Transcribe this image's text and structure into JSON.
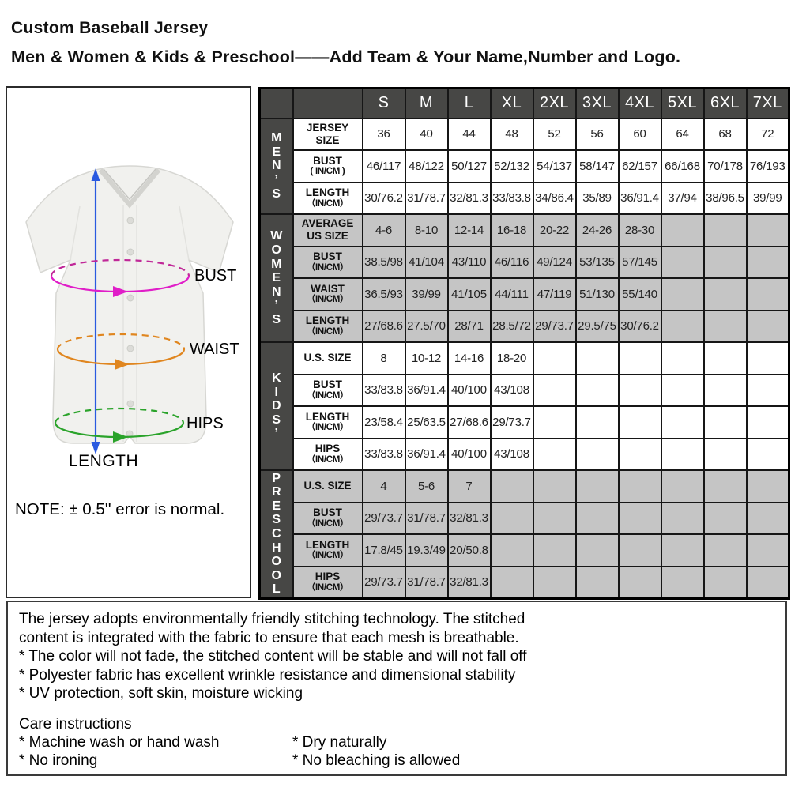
{
  "header": {
    "title": "Custom Baseball Jersey",
    "subtitle": "Men & Women & Kids & Preschool——Add Team & Your Name,Number and Logo."
  },
  "diagram": {
    "labels": {
      "bust": "BUST",
      "waist": "WAIST",
      "hips": "HIPS",
      "length": "LENGTH"
    },
    "note": "NOTE: ± 0.5'' error is normal.",
    "colors": {
      "bust": "#e01ec8",
      "bust_dash": "#c02898",
      "waist": "#e0861f",
      "hips": "#2aa32a",
      "length_arrow": "#2a5ae0"
    }
  },
  "size_table": {
    "columns": [
      "S",
      "M",
      "L",
      "XL",
      "2XL",
      "3XL",
      "4XL",
      "5XL",
      "6XL",
      "7XL"
    ],
    "sections": [
      {
        "key": "mens",
        "name": "MEN'S",
        "letters": [
          "M",
          "E",
          "N",
          "’",
          "S"
        ],
        "shaded": false,
        "rows": [
          {
            "label": "JERSEY SIZE",
            "unit": "",
            "values": [
              "36",
              "40",
              "44",
              "48",
              "52",
              "56",
              "60",
              "64",
              "68",
              "72"
            ]
          },
          {
            "label": "BUST",
            "unit": "( IN/CM )",
            "values": [
              "46/117",
              "48/122",
              "50/127",
              "52/132",
              "54/137",
              "58/147",
              "62/157",
              "66/168",
              "70/178",
              "76/193"
            ]
          },
          {
            "label": "LENGTH",
            "unit": "（IN/CM）",
            "values": [
              "30/76.2",
              "31/78.7",
              "32/81.3",
              "33/83.8",
              "34/86.4",
              "35/89",
              "36/91.4",
              "37/94",
              "38/96.5",
              "39/99"
            ]
          }
        ]
      },
      {
        "key": "womens",
        "name": "WOMEN'S",
        "letters": [
          "W",
          "O",
          "M",
          "E",
          "N",
          "’",
          "S"
        ],
        "shaded": true,
        "rows": [
          {
            "label": "AVERAGE US SIZE",
            "unit": "",
            "values": [
              "4-6",
              "8-10",
              "12-14",
              "16-18",
              "20-22",
              "24-26",
              "28-30",
              "",
              "",
              ""
            ]
          },
          {
            "label": "BUST",
            "unit": "（IN/CM）",
            "values": [
              "38.5/98",
              "41/104",
              "43/110",
              "46/116",
              "49/124",
              "53/135",
              "57/145",
              "",
              "",
              ""
            ]
          },
          {
            "label": "WAIST",
            "unit": "（IN/CM）",
            "values": [
              "36.5/93",
              "39/99",
              "41/105",
              "44/111",
              "47/119",
              "51/130",
              "55/140",
              "",
              "",
              ""
            ]
          },
          {
            "label": "LENGTH",
            "unit": "（IN/CM）",
            "values": [
              "27/68.6",
              "27.5/70",
              "28/71",
              "28.5/72",
              "29/73.7",
              "29.5/75",
              "30/76.2",
              "",
              "",
              ""
            ]
          }
        ]
      },
      {
        "key": "kids",
        "name": "KIDS'",
        "letters": [
          "K",
          "I",
          "D",
          "S",
          "’"
        ],
        "shaded": false,
        "rows": [
          {
            "label": "U.S. SIZE",
            "unit": "",
            "values": [
              "8",
              "10-12",
              "14-16",
              "18-20",
              "",
              "",
              "",
              "",
              "",
              ""
            ]
          },
          {
            "label": "BUST",
            "unit": "（IN/CM）",
            "values": [
              "33/83.8",
              "36/91.4",
              "40/100",
              "43/108",
              "",
              "",
              "",
              "",
              "",
              ""
            ]
          },
          {
            "label": "LENGTH",
            "unit": "（IN/CM）",
            "values": [
              "23/58.4",
              "25/63.5",
              "27/68.6",
              "29/73.7",
              "",
              "",
              "",
              "",
              "",
              ""
            ]
          },
          {
            "label": "HIPS",
            "unit": "（IN/CM）",
            "values": [
              "33/83.8",
              "36/91.4",
              "40/100",
              "43/108",
              "",
              "",
              "",
              "",
              "",
              ""
            ]
          }
        ]
      },
      {
        "key": "preschool",
        "name": "PRESCHOOL",
        "letters": [
          "P",
          "R",
          "E",
          "S",
          "C",
          "H",
          "O",
          "O",
          "L"
        ],
        "shaded": true,
        "rows": [
          {
            "label": "U.S. SIZE",
            "unit": "",
            "values": [
              "4",
              "5-6",
              "7",
              "",
              "",
              "",
              "",
              "",
              "",
              ""
            ]
          },
          {
            "label": "BUST",
            "unit": "（IN/CM）",
            "values": [
              "29/73.7",
              "31/78.7",
              "32/81.3",
              "",
              "",
              "",
              "",
              "",
              "",
              ""
            ]
          },
          {
            "label": "LENGTH",
            "unit": "（IN/CM）",
            "values": [
              "17.8/45",
              "19.3/49",
              "20/50.8",
              "",
              "",
              "",
              "",
              "",
              "",
              ""
            ]
          },
          {
            "label": "HIPS",
            "unit": "（IN/CM）",
            "values": [
              "29/73.7",
              "31/78.7",
              "32/81.3",
              "",
              "",
              "",
              "",
              "",
              "",
              ""
            ]
          }
        ]
      }
    ]
  },
  "info": {
    "lines": [
      "The jersey adopts environmentally friendly stitching technology. The stitched",
      "content is integrated with the fabric to ensure that each mesh is breathable.",
      "* The color will not fade, the stitched content will be stable and will not fall off",
      "* Polyester fabric has excellent wrinkle resistance and dimensional stability",
      "* UV protection, soft skin, moisture wicking"
    ],
    "care": {
      "title": "Care instructions",
      "left": [
        "* Machine wash or hand wash",
        "* No ironing"
      ],
      "right": [
        "* Dry naturally",
        "* No bleaching is allowed"
      ]
    }
  }
}
